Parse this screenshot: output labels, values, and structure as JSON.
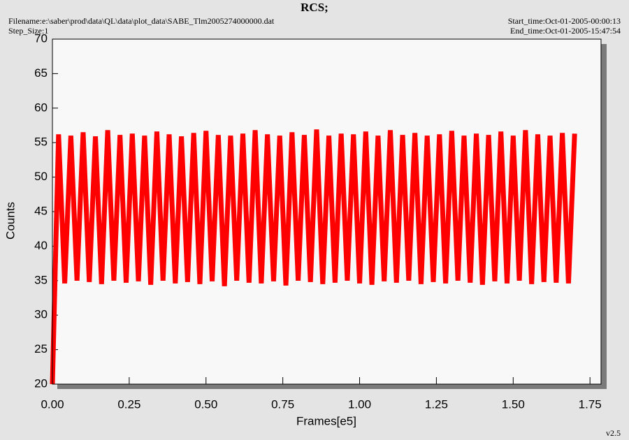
{
  "chart_data": {
    "type": "line",
    "title": "RCS;",
    "filename": "Filename:e:\\saber\\prod\\data\\QL\\data\\plot_data\\SABE_Tlm2005274000000.dat",
    "step_size": "Step_Size:1",
    "start_time": "Start_time:Oct-01-2005-00:00:13",
    "end_time": "End_time:Oct-01-2005-15:47:54",
    "version": "v2.5",
    "xlabel": "Frames[e5]",
    "ylabel": "Counts",
    "xlim": [
      0,
      1.786
    ],
    "ylim": [
      20,
      70
    ],
    "xticks": [
      {
        "value": 0,
        "label": "0.00"
      },
      {
        "value": 0.25,
        "label": "0.25"
      },
      {
        "value": 0.5,
        "label": "0.50"
      },
      {
        "value": 0.75,
        "label": "0.75"
      },
      {
        "value": 1,
        "label": "1.00"
      },
      {
        "value": 1.25,
        "label": "1.25"
      },
      {
        "value": 1.5,
        "label": "1.50"
      },
      {
        "value": 1.75,
        "label": "1.75"
      }
    ],
    "yticks": [
      20,
      25,
      30,
      35,
      40,
      45,
      50,
      55,
      60,
      65,
      70
    ],
    "x": [
      0,
      0.02,
      0.04,
      0.06,
      0.08,
      0.1,
      0.12,
      0.14,
      0.16,
      0.18,
      0.2,
      0.22,
      0.24,
      0.26,
      0.28,
      0.3,
      0.32,
      0.34,
      0.36,
      0.38,
      0.4,
      0.42,
      0.44,
      0.46,
      0.48,
      0.5,
      0.52,
      0.54,
      0.56,
      0.58,
      0.6,
      0.62,
      0.64,
      0.66,
      0.68,
      0.7,
      0.72,
      0.74,
      0.76,
      0.78,
      0.8,
      0.82,
      0.84,
      0.86,
      0.88,
      0.9,
      0.92,
      0.94,
      0.96,
      0.98,
      1.0,
      1.02,
      1.04,
      1.06,
      1.08,
      1.1,
      1.12,
      1.14,
      1.16,
      1.18,
      1.2,
      1.22,
      1.24,
      1.26,
      1.28,
      1.3,
      1.32,
      1.34,
      1.36,
      1.38,
      1.4,
      1.42,
      1.44,
      1.46,
      1.48,
      1.5,
      1.52,
      1.54,
      1.56,
      1.58,
      1.6,
      1.62,
      1.64,
      1.66,
      1.68,
      1.7
    ],
    "series": [
      {
        "color": "#ff0000",
        "values": [
          20,
          56.2,
          34.6,
          56.0,
          35.0,
          56.5,
          34.8,
          55.9,
          34.5,
          56.8,
          35.0,
          56.1,
          34.7,
          56.3,
          34.9,
          56.0,
          34.4,
          56.6,
          35.0,
          56.2,
          34.6,
          55.9,
          34.8,
          56.4,
          34.5,
          56.7,
          34.9,
          56.1,
          34.2,
          56.0,
          35.0,
          56.3,
          34.7,
          56.8,
          34.6,
          56.2,
          34.9,
          56.0,
          34.3,
          56.5,
          35.0,
          56.1,
          34.8,
          56.9,
          34.5,
          56.0,
          34.7,
          56.3,
          35.0,
          56.2,
          34.6,
          56.6,
          34.4,
          56.0,
          34.9,
          56.8,
          34.7,
          56.1,
          35.0,
          56.4,
          34.5,
          56.0,
          34.8,
          56.2,
          34.6,
          56.7,
          35.0,
          56.0,
          34.7,
          56.3,
          34.4,
          56.1,
          34.9,
          56.6,
          34.6,
          56.0,
          35.0,
          56.8,
          34.5,
          56.2,
          34.8,
          56.0,
          34.7,
          56.4,
          34.6,
          56.3
        ]
      }
    ]
  }
}
